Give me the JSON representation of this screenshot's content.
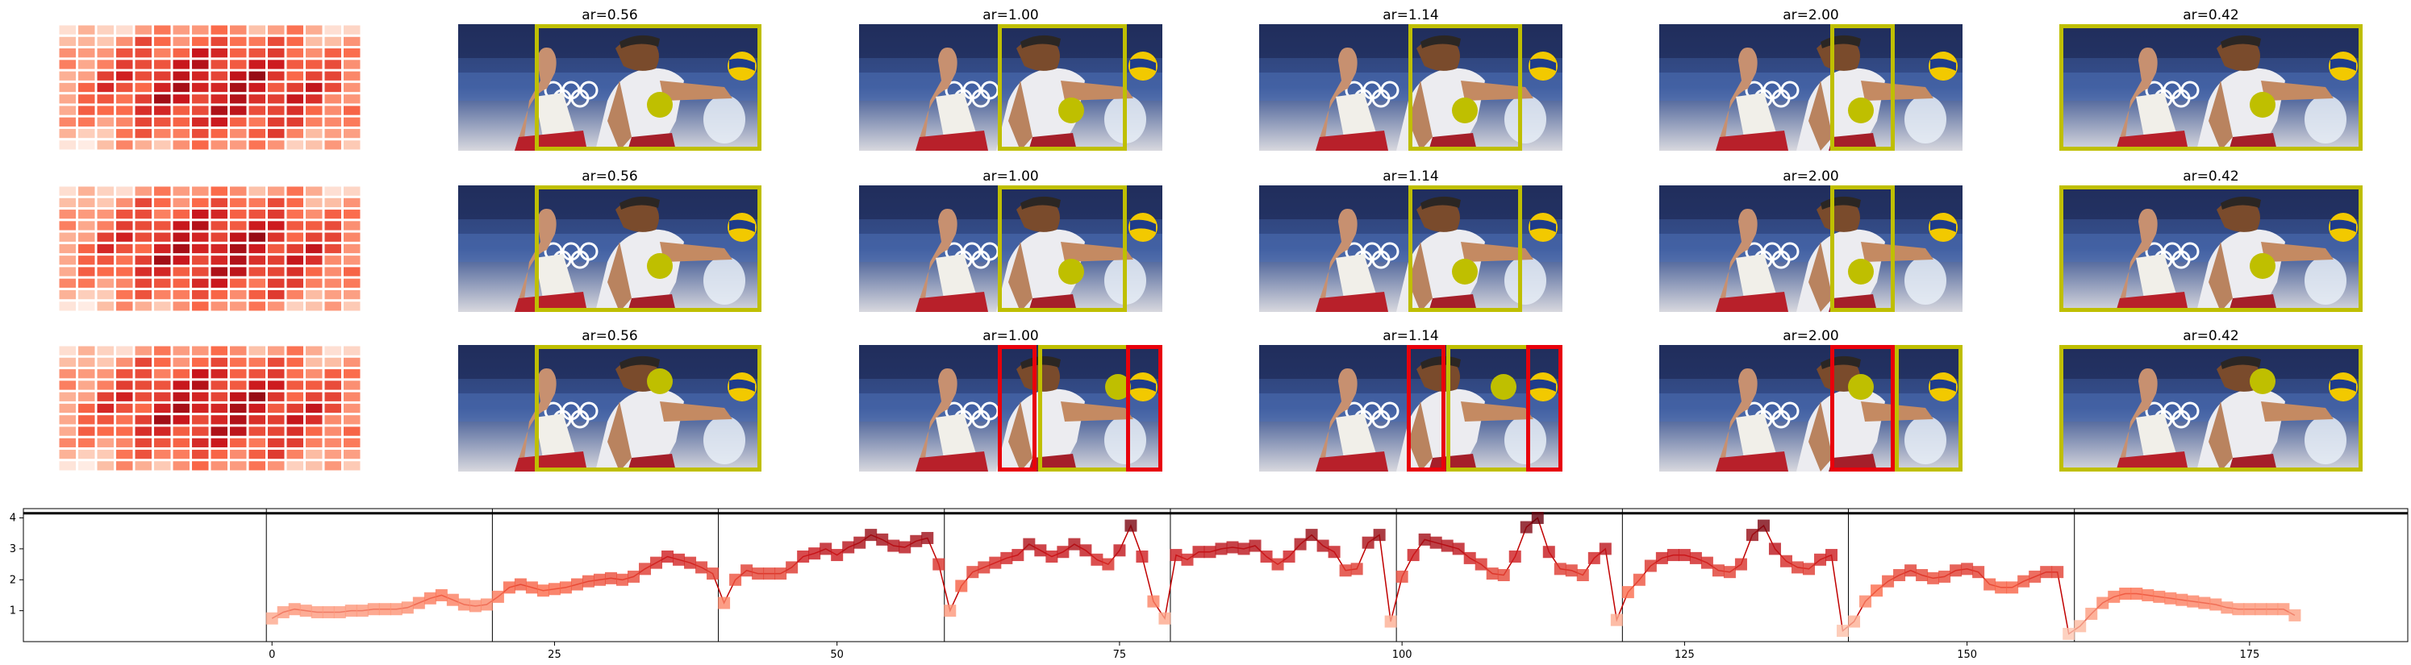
{
  "panels": [
    {
      "title": "ar=0.56",
      "frame_color": "#bfbf00"
    },
    {
      "title": "ar=1.00",
      "frame_color": "#bfbf00"
    },
    {
      "title": "ar=1.14",
      "frame_color": "#bfbf00"
    },
    {
      "title": "ar=2.00",
      "frame_color": "#bfbf00"
    },
    {
      "title": "ar=0.42",
      "frame_color": "#bfbf00"
    }
  ],
  "rows": [
    {
      "red_boxes": [
        false,
        false,
        false,
        false,
        false
      ]
    },
    {
      "red_boxes": [
        false,
        false,
        false,
        false,
        false
      ]
    },
    {
      "red_boxes": [
        false,
        true,
        true,
        true,
        false
      ]
    }
  ],
  "colors": {
    "highlight": "#bfbf00",
    "alert": "#e8000b",
    "line": "#c00000"
  },
  "chart_data": {
    "type": "line",
    "x_ticks": [
      0,
      25,
      50,
      75,
      100,
      125,
      150,
      175
    ],
    "y_ticks": [
      1,
      2,
      3,
      4
    ],
    "xlim": [
      -22,
      189
    ],
    "ylim": [
      0,
      4.3
    ],
    "hline": 4.15,
    "segment_boundaries": [
      0,
      20,
      40,
      60,
      80,
      100,
      120,
      140,
      160
    ],
    "y": [
      0.75,
      0.95,
      1.05,
      1.0,
      0.95,
      0.95,
      0.95,
      1.0,
      1.0,
      1.05,
      1.05,
      1.05,
      1.1,
      1.25,
      1.4,
      1.5,
      1.35,
      1.2,
      1.15,
      1.2,
      1.45,
      1.75,
      1.85,
      1.75,
      1.65,
      1.7,
      1.75,
      1.85,
      1.95,
      2.0,
      2.05,
      2.0,
      2.1,
      2.35,
      2.55,
      2.75,
      2.65,
      2.55,
      2.4,
      2.2,
      1.25,
      2.0,
      2.3,
      2.2,
      2.2,
      2.2,
      2.4,
      2.75,
      2.85,
      3.0,
      2.8,
      3.05,
      3.2,
      3.45,
      3.3,
      3.1,
      3.05,
      3.25,
      3.35,
      2.5,
      1.0,
      1.8,
      2.25,
      2.4,
      2.55,
      2.7,
      2.8,
      3.15,
      2.95,
      2.75,
      2.9,
      3.15,
      2.95,
      2.65,
      2.5,
      2.95,
      3.75,
      2.75,
      1.3,
      0.75,
      2.8,
      2.65,
      2.9,
      2.9,
      3.0,
      3.05,
      3.0,
      3.1,
      2.75,
      2.5,
      2.75,
      3.15,
      3.45,
      3.1,
      2.9,
      2.3,
      2.35,
      3.2,
      3.45,
      0.65,
      2.1,
      2.8,
      3.3,
      3.2,
      3.1,
      3.0,
      2.7,
      2.5,
      2.2,
      2.15,
      2.75,
      3.7,
      4.0,
      2.9,
      2.35,
      2.3,
      2.15,
      2.7,
      3.0,
      0.7,
      1.6,
      2.0,
      2.45,
      2.7,
      2.8,
      2.8,
      2.7,
      2.55,
      2.3,
      2.25,
      2.5,
      3.45,
      3.75,
      3.0,
      2.6,
      2.4,
      2.35,
      2.65,
      2.8,
      0.35,
      0.65,
      1.3,
      1.65,
      1.95,
      2.15,
      2.3,
      2.15,
      2.05,
      2.1,
      2.3,
      2.35,
      2.25,
      1.85,
      1.75,
      1.75,
      1.95,
      2.1,
      2.25,
      2.25,
      0.25,
      0.5,
      0.9,
      1.25,
      1.45,
      1.55,
      1.55,
      1.5,
      1.45,
      1.4,
      1.35,
      1.3,
      1.25,
      1.2,
      1.1,
      1.05,
      1.05,
      1.05,
      1.05,
      1.05,
      0.85
    ]
  }
}
